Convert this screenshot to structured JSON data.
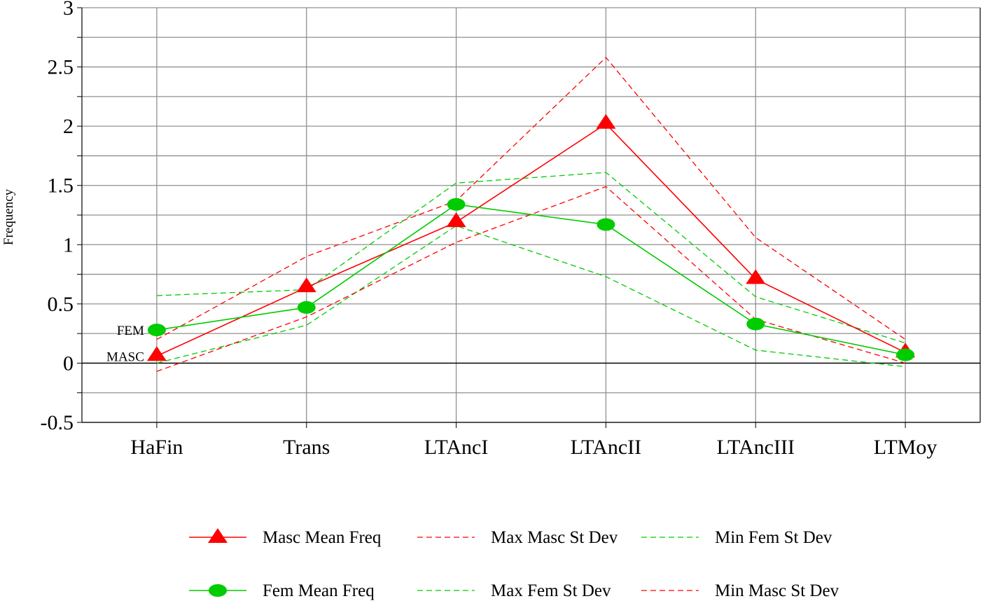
{
  "chart_data": {
    "type": "line",
    "title": "",
    "xlabel": "",
    "ylabel": "Frequency",
    "categories": [
      "HaFin",
      "Trans",
      "LTAncI",
      "LTAncII",
      "LTAncIII",
      "LTMoy"
    ],
    "ylim": [
      -0.5,
      3
    ],
    "yticks": [
      "-0.5",
      "0",
      "0.5",
      "1",
      "1.5",
      "2",
      "2.5",
      "3"
    ],
    "grid": true,
    "legend_position": "bottom",
    "colors": {
      "masc": "#ff0000",
      "fem": "#00cc00"
    },
    "series": [
      {
        "name": "Masc Mean Freq",
        "color": "#ff0000",
        "style": "solid",
        "marker": "triangle",
        "values": [
          0.06,
          0.64,
          1.19,
          2.02,
          0.71,
          0.09
        ]
      },
      {
        "name": "Fem Mean Freq",
        "color": "#00cc00",
        "style": "solid",
        "marker": "ellipse",
        "values": [
          0.28,
          0.47,
          1.34,
          1.17,
          0.33,
          0.07
        ]
      },
      {
        "name": "Max Masc St Dev",
        "color": "#ff0000",
        "style": "dashed",
        "marker": "none",
        "values": [
          0.2,
          0.9,
          1.37,
          2.58,
          1.06,
          0.2
        ]
      },
      {
        "name": "Max Fem St Dev",
        "color": "#00cc00",
        "style": "dashed",
        "marker": "none",
        "values": [
          0.57,
          0.62,
          1.52,
          1.61,
          0.56,
          0.17
        ]
      },
      {
        "name": "Min Fem St Dev",
        "color": "#00cc00",
        "style": "dashed",
        "marker": "none",
        "values": [
          0.0,
          0.32,
          1.16,
          0.73,
          0.11,
          -0.03
        ]
      },
      {
        "name": "Min Masc St Dev",
        "color": "#ff0000",
        "style": "dashed",
        "marker": "none",
        "values": [
          -0.07,
          0.39,
          1.02,
          1.49,
          0.37,
          0.0
        ]
      }
    ],
    "annotations": [
      {
        "text": "FEM",
        "category": "HaFin",
        "series": "Fem Mean Freq"
      },
      {
        "text": "MASC",
        "category": "HaFin",
        "series": "Masc Mean Freq"
      }
    ],
    "legend_rows": [
      [
        "Masc Mean Freq",
        "Max Masc St Dev",
        "Min Fem St Dev"
      ],
      [
        "Fem Mean Freq",
        "Max Fem St Dev",
        "Min Masc St Dev"
      ]
    ]
  }
}
